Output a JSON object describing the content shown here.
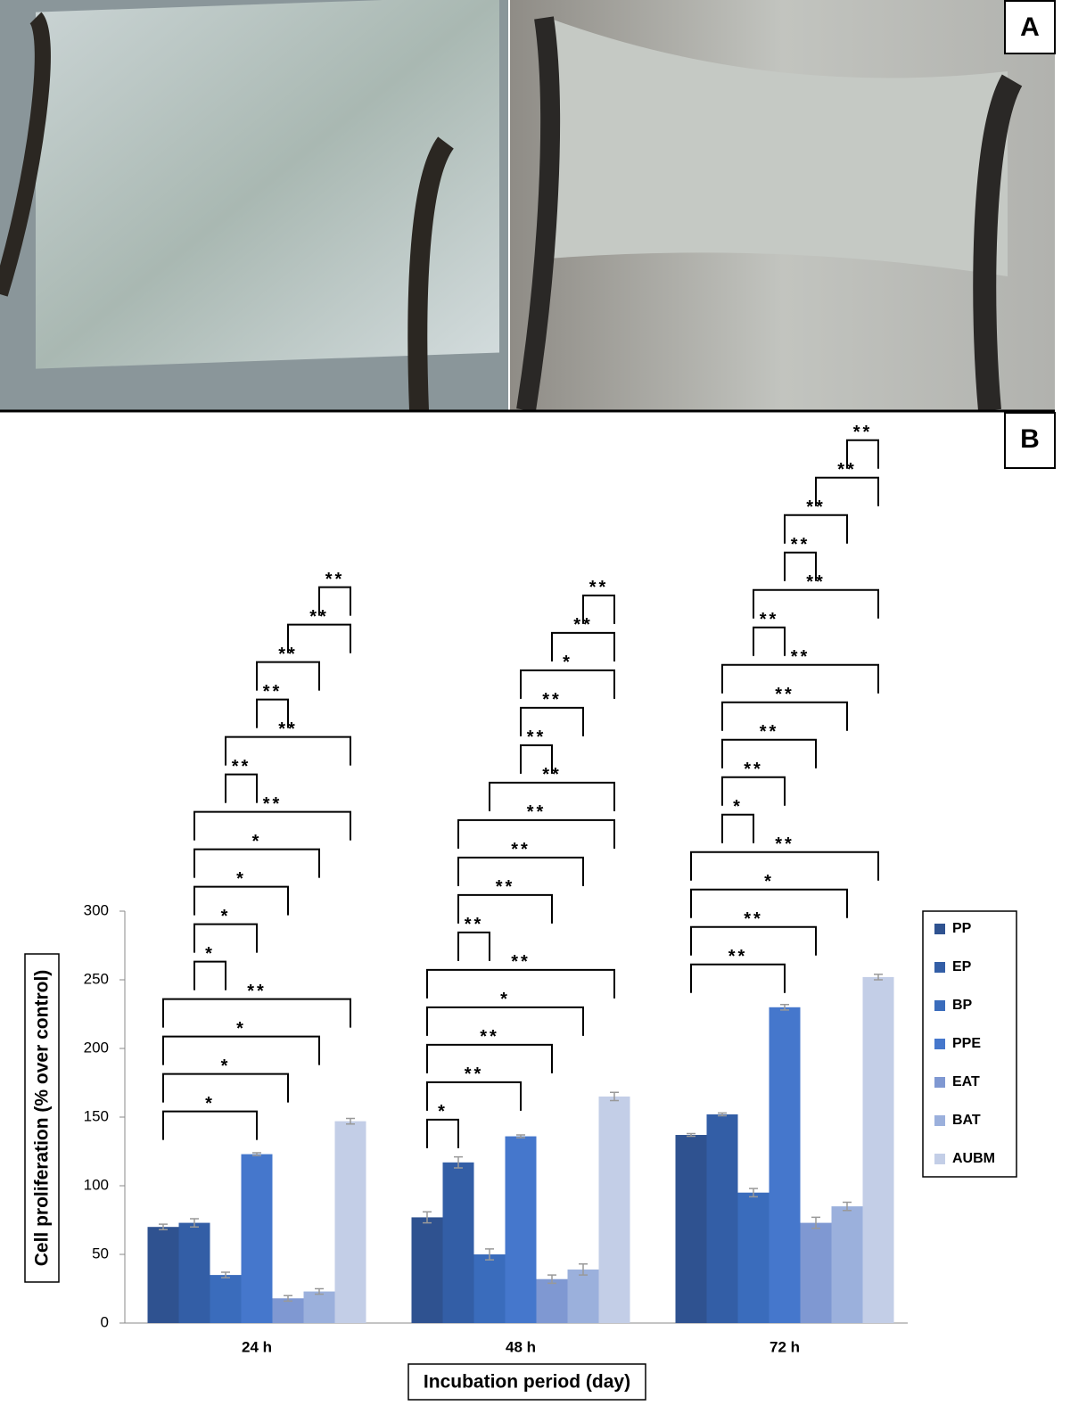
{
  "panels": [
    "A",
    "B"
  ],
  "chart_data": {
    "type": "bar",
    "xlabel": "Incubation period (day)",
    "ylabel": "Cell proliferation (% over control)",
    "categories": [
      "24 h",
      "48 h",
      "72 h"
    ],
    "ylim": [
      0,
      300
    ],
    "yticks": [
      0,
      50,
      100,
      150,
      200,
      250,
      300
    ],
    "series": [
      {
        "name": "PP",
        "color": "#2f5290",
        "values": [
          70,
          77,
          137
        ],
        "errors": [
          2,
          4,
          1
        ]
      },
      {
        "name": "EP",
        "color": "#335ea6",
        "values": [
          73,
          117,
          152
        ],
        "errors": [
          3,
          4,
          1
        ]
      },
      {
        "name": "BP",
        "color": "#3a6cbc",
        "values": [
          35,
          50,
          95
        ],
        "errors": [
          2,
          4,
          3
        ]
      },
      {
        "name": "PPE",
        "color": "#4577cc",
        "values": [
          123,
          136,
          230
        ],
        "errors": [
          1,
          1,
          2
        ]
      },
      {
        "name": "EAT",
        "color": "#7f98d2",
        "values": [
          18,
          32,
          73
        ],
        "errors": [
          2,
          3,
          4
        ]
      },
      {
        "name": "BAT",
        "color": "#9bb0dc",
        "values": [
          23,
          39,
          85
        ],
        "errors": [
          2,
          4,
          3
        ]
      },
      {
        "name": "AUBM",
        "color": "#c3cee7",
        "values": [
          147,
          165,
          252
        ],
        "errors": [
          2,
          3,
          2
        ]
      }
    ],
    "brackets": [
      [
        {
          "between": [
            "PP",
            "PPE"
          ],
          "label": "*"
        },
        {
          "between": [
            "PP",
            "EAT"
          ],
          "label": "*"
        },
        {
          "between": [
            "PP",
            "BAT"
          ],
          "label": "*"
        },
        {
          "between": [
            "PP",
            "AUBM"
          ],
          "label": "**"
        },
        {
          "between": [
            "EP",
            "BP"
          ],
          "label": "*"
        },
        {
          "between": [
            "EP",
            "PPE"
          ],
          "label": "*"
        },
        {
          "between": [
            "EP",
            "EAT"
          ],
          "label": "*"
        },
        {
          "between": [
            "EP",
            "BAT"
          ],
          "label": "*"
        },
        {
          "between": [
            "EP",
            "AUBM"
          ],
          "label": "**"
        },
        {
          "between": [
            "BP",
            "PPE"
          ],
          "label": "**"
        },
        {
          "between": [
            "BP",
            "AUBM"
          ],
          "label": "**"
        },
        {
          "between": [
            "PPE",
            "EAT"
          ],
          "label": "**"
        },
        {
          "between": [
            "PPE",
            "BAT"
          ],
          "label": "**"
        },
        {
          "between": [
            "EAT",
            "AUBM"
          ],
          "label": "**"
        },
        {
          "between": [
            "BAT",
            "AUBM"
          ],
          "label": "**"
        }
      ],
      [
        {
          "between": [
            "PP",
            "EP"
          ],
          "label": "*"
        },
        {
          "between": [
            "PP",
            "PPE"
          ],
          "label": "**"
        },
        {
          "between": [
            "PP",
            "EAT"
          ],
          "label": "**"
        },
        {
          "between": [
            "PP",
            "BAT"
          ],
          "label": "*"
        },
        {
          "between": [
            "PP",
            "AUBM"
          ],
          "label": "**"
        },
        {
          "between": [
            "EP",
            "BP"
          ],
          "label": "**"
        },
        {
          "between": [
            "EP",
            "EAT"
          ],
          "label": "**"
        },
        {
          "between": [
            "EP",
            "BAT"
          ],
          "label": "**"
        },
        {
          "between": [
            "EP",
            "AUBM"
          ],
          "label": "**"
        },
        {
          "between": [
            "BP",
            "AUBM"
          ],
          "label": "**"
        },
        {
          "between": [
            "PPE",
            "EAT"
          ],
          "label": "**"
        },
        {
          "between": [
            "PPE",
            "BAT"
          ],
          "label": "**"
        },
        {
          "between": [
            "PPE",
            "AUBM"
          ],
          "label": "*"
        },
        {
          "between": [
            "EAT",
            "AUBM"
          ],
          "label": "**"
        },
        {
          "between": [
            "BAT",
            "AUBM"
          ],
          "label": "**"
        }
      ],
      [
        {
          "between": [
            "PP",
            "PPE"
          ],
          "label": "**"
        },
        {
          "between": [
            "PP",
            "EAT"
          ],
          "label": "**"
        },
        {
          "between": [
            "PP",
            "BAT"
          ],
          "label": "*"
        },
        {
          "between": [
            "PP",
            "AUBM"
          ],
          "label": "**"
        },
        {
          "between": [
            "EP",
            "BP"
          ],
          "label": "*"
        },
        {
          "between": [
            "EP",
            "PPE"
          ],
          "label": "**"
        },
        {
          "between": [
            "EP",
            "EAT"
          ],
          "label": "**"
        },
        {
          "between": [
            "EP",
            "BAT"
          ],
          "label": "**"
        },
        {
          "between": [
            "EP",
            "AUBM"
          ],
          "label": "**"
        },
        {
          "between": [
            "BP",
            "PPE"
          ],
          "label": "**"
        },
        {
          "between": [
            "BP",
            "AUBM"
          ],
          "label": "**"
        },
        {
          "between": [
            "PPE",
            "EAT"
          ],
          "label": "**"
        },
        {
          "between": [
            "PPE",
            "BAT"
          ],
          "label": "**"
        },
        {
          "between": [
            "EAT",
            "AUBM"
          ],
          "label": "**"
        },
        {
          "between": [
            "BAT",
            "AUBM"
          ],
          "label": "**"
        }
      ]
    ]
  }
}
